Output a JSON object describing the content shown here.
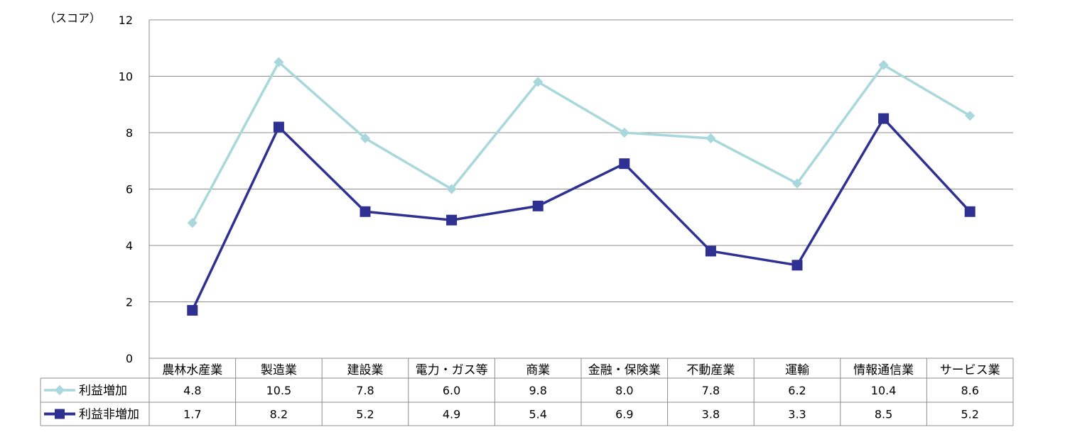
{
  "chart_data": {
    "type": "line",
    "ylabel": "（スコア）",
    "ylim": [
      0,
      12
    ],
    "yticks": [
      0,
      2,
      4,
      6,
      8,
      10,
      12
    ],
    "grid": true,
    "legend_placement": "data-table-left",
    "categories": [
      "農林水産業",
      "製造業",
      "建設業",
      "電力・ガス等",
      "商業",
      "金融・保険業",
      "不動産業",
      "運輸",
      "情報通信業",
      "サービス業"
    ],
    "series": [
      {
        "name": "利益増加",
        "color": "#a8d8dc",
        "marker": "diamond",
        "values": [
          4.8,
          10.5,
          7.8,
          6.0,
          9.8,
          8.0,
          7.8,
          6.2,
          10.4,
          8.6
        ],
        "labels": [
          "4.8",
          "10.5",
          "7.8",
          "6.0",
          "9.8",
          "8.0",
          "7.8",
          "6.2",
          "10.4",
          "8.6"
        ]
      },
      {
        "name": "利益非増加",
        "color": "#2e3192",
        "marker": "square",
        "values": [
          1.7,
          8.2,
          5.2,
          4.9,
          5.4,
          6.9,
          3.8,
          3.3,
          8.5,
          5.2
        ],
        "labels": [
          "1.7",
          "8.2",
          "5.2",
          "4.9",
          "5.4",
          "6.9",
          "3.8",
          "3.3",
          "8.5",
          "5.2"
        ]
      }
    ]
  }
}
